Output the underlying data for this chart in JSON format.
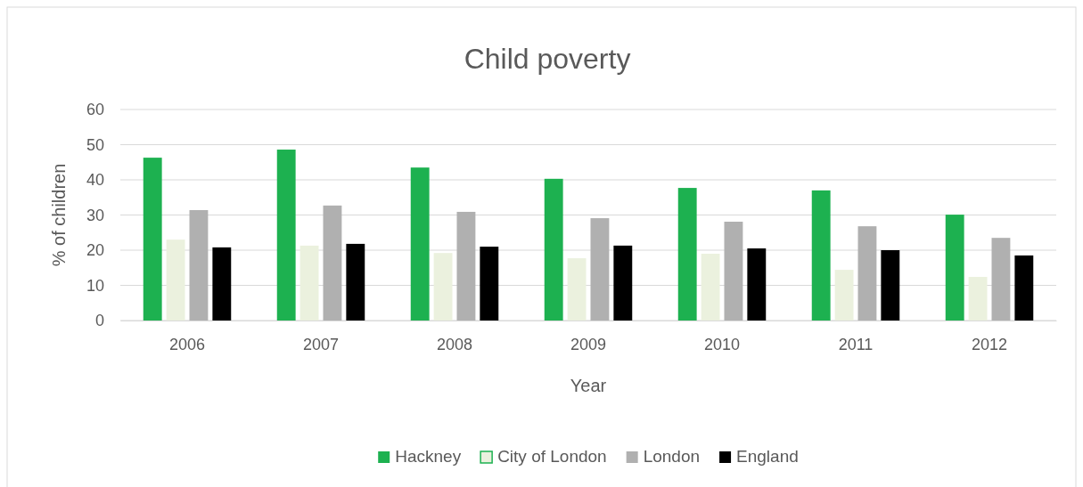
{
  "chart_data": {
    "type": "bar",
    "title": "Child poverty",
    "xlabel": "Year",
    "ylabel": "% of children",
    "categories": [
      "2006",
      "2007",
      "2008",
      "2009",
      "2010",
      "2011",
      "2012"
    ],
    "series": [
      {
        "name": "Hackney",
        "color": "#1db150",
        "values": [
          46.3,
          48.6,
          43.5,
          40.3,
          37.7,
          37.0,
          30.1
        ]
      },
      {
        "name": "City of London",
        "color": "#ebf1de",
        "values": [
          23.0,
          21.3,
          19.2,
          17.7,
          19.0,
          14.4,
          12.4
        ]
      },
      {
        "name": "London",
        "color": "#b0b0b0",
        "values": [
          31.4,
          32.7,
          30.9,
          29.1,
          28.1,
          26.8,
          23.5
        ]
      },
      {
        "name": "England",
        "color": "#000000",
        "values": [
          20.8,
          21.8,
          21.0,
          21.3,
          20.5,
          20.0,
          18.5
        ]
      }
    ],
    "ylim": [
      0,
      60
    ],
    "yticks": [
      0,
      10,
      20,
      30,
      40,
      50,
      60
    ],
    "grid": "y",
    "legend": "bottom"
  }
}
